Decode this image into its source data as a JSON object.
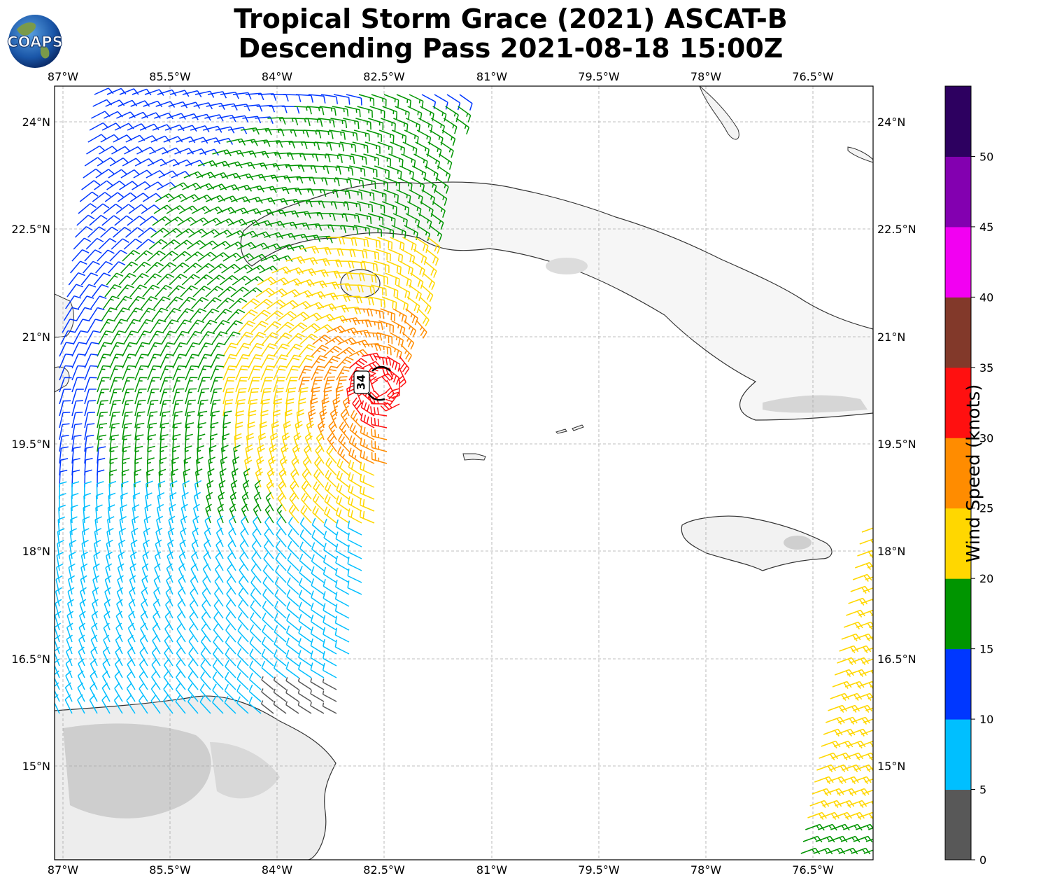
{
  "title": {
    "line1": "Tropical Storm Grace (2021) ASCAT-B",
    "line2": "Descending Pass 2021-08-18 15:00Z"
  },
  "logo": {
    "text": "COAPS"
  },
  "lon_ticks": [
    "87°W",
    "85.5°W",
    "84°W",
    "82.5°W",
    "81°W",
    "79.5°W",
    "78°W",
    "76.5°W"
  ],
  "lat_ticks": [
    "24°N",
    "22.5°N",
    "21°N",
    "19.5°N",
    "18°N",
    "16.5°N",
    "15°N"
  ],
  "radius_label": "34",
  "colorbar": {
    "label": "Wind Speed (knots)",
    "ticks": [
      "0",
      "5",
      "10",
      "15",
      "20",
      "25",
      "30",
      "35",
      "40",
      "45",
      "50"
    ],
    "bins": [
      {
        "range": "0-5",
        "color": "#585858"
      },
      {
        "range": "5-10",
        "color": "#00bfff"
      },
      {
        "range": "10-15",
        "color": "#0037ff"
      },
      {
        "range": "15-20",
        "color": "#009500"
      },
      {
        "range": "20-25",
        "color": "#ffd700"
      },
      {
        "range": "25-30",
        "color": "#ff8c00"
      },
      {
        "range": "30-35",
        "color": "#ff1010"
      },
      {
        "range": "35-40",
        "color": "#82392a"
      },
      {
        "range": "40-45",
        "color": "#f200f2"
      },
      {
        "range": "45-50",
        "color": "#8300b0"
      },
      {
        "range": "50+",
        "color": "#2d0060"
      }
    ]
  },
  "map": {
    "lon_range": [
      "87.1°W",
      "75.9°W"
    ],
    "lat_range": [
      "13.6°N",
      "24.5°N"
    ],
    "gridlines": true,
    "storm_center": {
      "lon": -82.55,
      "lat": 20.3
    },
    "swaths": [
      {
        "name": "western swath",
        "lon_extent": [
          "87.1°W",
          "82.6°W"
        ]
      },
      {
        "name": "eastern swath",
        "lon_extent": [
          "76.7°W",
          "75.9°W"
        ]
      }
    ]
  }
}
